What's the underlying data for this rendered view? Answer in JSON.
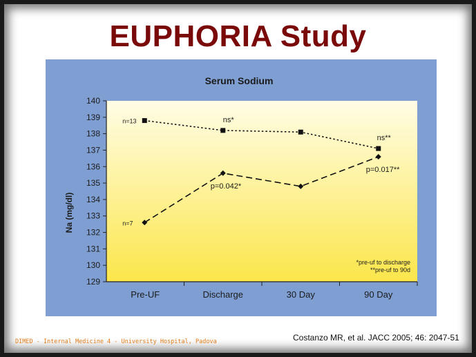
{
  "slide": {
    "title": "EUPHORIA Study",
    "footer": "DIMED - Internal Medicine 4 - University Hospital, Padova",
    "citation": "Costanzo MR, et al. JACC 2005; 46: 2047-51"
  },
  "colors": {
    "title": "#7a0a0a",
    "figure_background": "#7f9fd3",
    "plot_gradient_top": "#fffde6",
    "plot_gradient_bottom": "#fbe64a",
    "footer_text": "#e07b1a"
  },
  "chart_data": {
    "type": "line",
    "title": "Serum Sodium",
    "xlabel": "",
    "ylabel": "Na (mg/dl)",
    "categories": [
      "Pre-UF",
      "Discharge",
      "30 Day",
      "90 Day"
    ],
    "ylim": [
      129,
      140
    ],
    "yticks": [
      129,
      130,
      131,
      132,
      133,
      134,
      135,
      136,
      137,
      138,
      139,
      140
    ],
    "grid": false,
    "series": [
      {
        "values": [
          138.8,
          138.2,
          138.1,
          137.1
        ],
        "line_style": "dotted",
        "marker": "square",
        "n_label": "n=13",
        "point_labels": [
          "",
          "ns*",
          "",
          "ns**"
        ]
      },
      {
        "values": [
          132.6,
          135.6,
          134.8,
          136.6
        ],
        "line_style": "dashed",
        "marker": "diamond",
        "n_label": "n=7",
        "point_labels": [
          "",
          "p=0.042*",
          "",
          "p=0.017**"
        ]
      }
    ],
    "footnotes": [
      "*pre-uf to discharge",
      "**pre-uf to 90d"
    ]
  }
}
